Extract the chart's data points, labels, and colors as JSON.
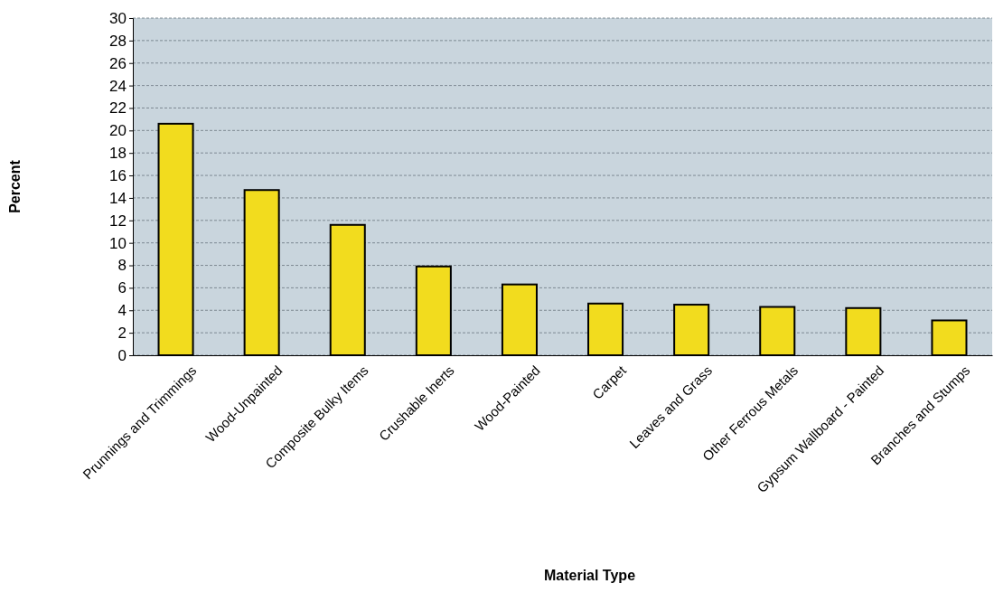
{
  "chart_data": {
    "type": "bar",
    "xlabel": "Material Type",
    "ylabel": "Percent",
    "categories": [
      "Prunnings and Trimmings",
      "Wood-Unpainted",
      "Composite Bulky Items",
      "Crushable Inerts",
      "Wood-Painted",
      "Carpet",
      "Leaves and Grass",
      "Other Ferrous Metals",
      "Gypsum Wallboard - Painted",
      "Branches and Stumps"
    ],
    "values": [
      20.6,
      14.7,
      11.6,
      7.9,
      6.3,
      4.6,
      4.5,
      4.3,
      4.2,
      3.1
    ],
    "color": "#f2dc1e",
    "ylim": [
      0,
      30
    ],
    "yticks": [
      0,
      2,
      4,
      6,
      8,
      10,
      12,
      14,
      16,
      18,
      20,
      22,
      24,
      26,
      28,
      30
    ],
    "grid": "y"
  }
}
